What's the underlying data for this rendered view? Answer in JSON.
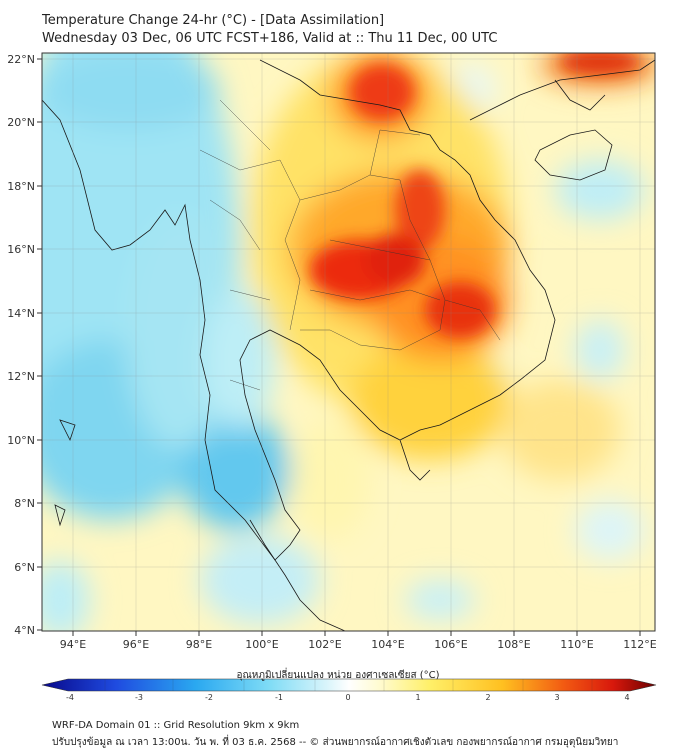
{
  "title": {
    "line1": "Temperature Change 24-hr (°C) - [Data Assimilation]",
    "line2": "Wednesday 03 Dec, 06 UTC FCST+186, Valid at :: Thu 11 Dec, 00 UTC"
  },
  "map": {
    "lat_labels": [
      "22°N",
      "20°N",
      "18°N",
      "16°N",
      "14°N",
      "12°N",
      "10°N",
      "8°N",
      "6°N",
      "4°N"
    ],
    "lon_labels": [
      "94°E",
      "96°E",
      "98°E",
      "100°E",
      "102°E",
      "104°E",
      "106°E",
      "108°E",
      "110°E",
      "112°E"
    ],
    "lat_range": [
      4,
      22.2
    ],
    "lon_range": [
      93,
      112.4
    ]
  },
  "colorbar": {
    "title": "อุณหภูมิเปลี่ยนแปลง หน่วย องศาเซลเซียส (°C)",
    "ticks": [
      "-4",
      "-3",
      "-2",
      "-1",
      "0",
      "1",
      "2",
      "3",
      "4"
    ],
    "range": [
      -4,
      4
    ]
  },
  "footer": {
    "line1": "WRF-DA Domain 01 :: Grid Resolution 9km x 9km",
    "line2": "ปรับปรุงข้อมูล ณ เวลา 13:00น. วัน พ. ที่ 03 ธ.ค. 2568 -- © ส่วนพยากรณ์อากาศเชิงตัวเลข กองพยากรณ์อากาศ กรมอุตุนิยมวิทยา"
  }
}
